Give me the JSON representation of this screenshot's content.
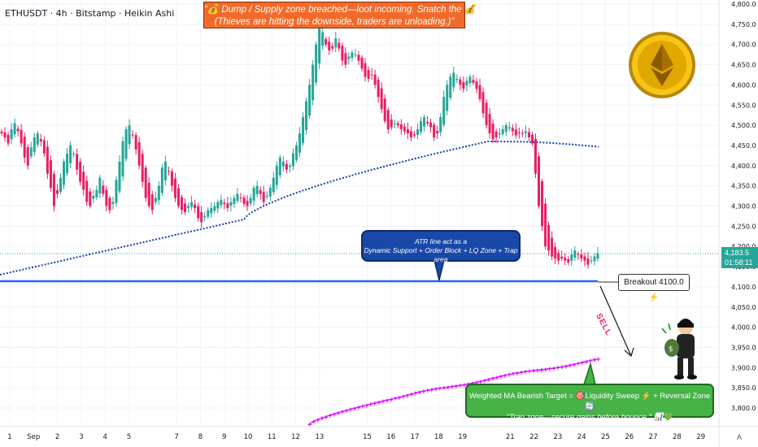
{
  "symbol_line": "ETHUSDT · 4h · Bitstamp · Heikin Ashi",
  "banner": {
    "line1": "“💰 Dump / Supply zone breached—loot incoming. Snatch the 💰.",
    "line2": "(Thieves are hitting the downside, traders are unloading.)”"
  },
  "callout_blue": {
    "line1": "ATR line act as a",
    "line2": "Dynamic Support + Order Block + LQ Zone + Trap area"
  },
  "callout_green": {
    "line1": "Weighted MA  Bearish Target = 🎯Liquidity Sweep ⚡ + Reversal Zone 🔄",
    "line2": "\"Trap zone—secure gains before bounce.\" 📊💚"
  },
  "breakout_label": "Breakout 4100.0 ⚡",
  "sell_label": "SELL",
  "last_price": "4,183.5",
  "countdown": "01:58:11",
  "tv_mark": "A",
  "chart_data": {
    "type": "candlestick",
    "title": "ETHUSDT · 4h · Bitstamp · Heikin Ashi",
    "ylim": [
      3750,
      4830
    ],
    "y_ticks": [
      3800,
      3850,
      3900,
      3950,
      4000,
      4050,
      4100,
      4150,
      4200,
      4250,
      4300,
      4350,
      4400,
      4450,
      4500,
      4550,
      4600,
      4650,
      4700,
      4750,
      4800
    ],
    "y_tick_labels": [
      "3,800.0",
      "3,850.0",
      "3,900.0",
      "3,950.0",
      "4,000.0",
      "4,050.0",
      "4,100.0",
      "4,150.0",
      "4,200.0",
      "4,250.0",
      "4,300.0",
      "4,350.0",
      "4,400.0",
      "4,450.0",
      "4,500.0",
      "4,550.0",
      "4,600.0",
      "4,650.0",
      "4,700.0",
      "4,750.0",
      "4,800.0"
    ],
    "x_ticks": [
      {
        "label": "1",
        "day": 1
      },
      {
        "label": "Sep",
        "day": 2
      },
      {
        "label": "2",
        "day": 3
      },
      {
        "label": "3",
        "day": 4
      },
      {
        "label": "4",
        "day": 5
      },
      {
        "label": "5",
        "day": 6
      },
      {
        "label": "7",
        "day": 8
      },
      {
        "label": "8",
        "day": 9
      },
      {
        "label": "9",
        "day": 10
      },
      {
        "label": "10",
        "day": 11
      },
      {
        "label": "11",
        "day": 12
      },
      {
        "label": "12",
        "day": 13
      },
      {
        "label": "13",
        "day": 14
      },
      {
        "label": "15",
        "day": 16
      },
      {
        "label": "16",
        "day": 17
      },
      {
        "label": "17",
        "day": 18
      },
      {
        "label": "18",
        "day": 19
      },
      {
        "label": "19",
        "day": 20
      },
      {
        "label": "21",
        "day": 22
      },
      {
        "label": "22",
        "day": 23
      },
      {
        "label": "23",
        "day": 24
      },
      {
        "label": "24",
        "day": 25
      },
      {
        "label": "25",
        "day": 26
      },
      {
        "label": "26",
        "day": 27
      },
      {
        "label": "27",
        "day": 28
      },
      {
        "label": "28",
        "day": 29
      },
      {
        "label": "29",
        "day": 30
      }
    ],
    "bullish_color": "#26a69a",
    "bearish_color": "#e91e63",
    "breakout_level": 4100,
    "last_price": 4183.5,
    "closes": [
      4480,
      4470,
      4455,
      4490,
      4505,
      4485,
      4455,
      4420,
      4400,
      4445,
      4470,
      4480,
      4460,
      4430,
      4380,
      4345,
      4300,
      4330,
      4370,
      4410,
      4430,
      4450,
      4430,
      4390,
      4360,
      4340,
      4310,
      4300,
      4325,
      4340,
      4370,
      4330,
      4300,
      4290,
      4310,
      4365,
      4410,
      4460,
      4490,
      4500,
      4475,
      4440,
      4400,
      4360,
      4320,
      4300,
      4290,
      4320,
      4350,
      4395,
      4410,
      4385,
      4350,
      4320,
      4300,
      4290,
      4285,
      4300,
      4310,
      4295,
      4270,
      4260,
      4275,
      4290,
      4295,
      4300,
      4310,
      4315,
      4305,
      4295,
      4310,
      4320,
      4330,
      4320,
      4305,
      4300,
      4320,
      4345,
      4350,
      4330,
      4310,
      4325,
      4345,
      4370,
      4400,
      4420,
      4410,
      4390,
      4400,
      4430,
      4450,
      4480,
      4520,
      4560,
      4600,
      4650,
      4700,
      4740,
      4730,
      4700,
      4685,
      4690,
      4715,
      4690,
      4660,
      4650,
      4670,
      4680,
      4675,
      4660,
      4640,
      4620,
      4615,
      4625,
      4600,
      4570,
      4540,
      4510,
      4490,
      4495,
      4505,
      4500,
      4490,
      4485,
      4480,
      4470,
      4475,
      4490,
      4510,
      4520,
      4505,
      4495,
      4470,
      4480,
      4520,
      4570,
      4600,
      4620,
      4630,
      4615,
      4600,
      4590,
      4610,
      4620,
      4605,
      4590,
      4565,
      4530,
      4500,
      4480,
      4465,
      4470,
      4480,
      4490,
      4500,
      4495,
      4485,
      4475,
      4480,
      4480,
      4485,
      4470,
      4455,
      4380,
      4300,
      4250,
      4200,
      4190,
      4175,
      4170,
      4165,
      4170,
      4165,
      4160,
      4180,
      4190,
      4180,
      4170,
      4165,
      4155,
      4165,
      4175,
      4183.5
    ],
    "weighted_ma_dates": [
      "Sep 13 → Sep 24 (rising)"
    ],
    "annotations": [
      "ATR line act as a Dynamic Support + Order Block + LQ Zone + Trap area",
      "Breakout 4100.0",
      "SELL",
      "Weighted MA Bearish Target"
    ]
  }
}
